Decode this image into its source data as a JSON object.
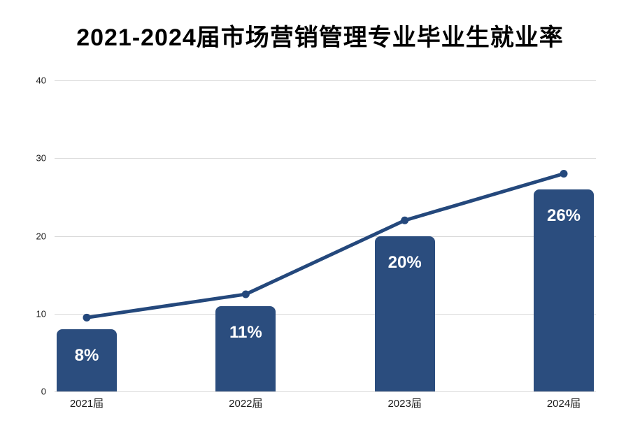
{
  "chart_data": {
    "type": "combo",
    "title": "2021-2024届市场营销管理专业毕业生就业率",
    "categories": [
      "2021届",
      "2022届",
      "2023届",
      "2024届"
    ],
    "series": [
      {
        "name": "bars",
        "type": "bar",
        "values": [
          8,
          11,
          20,
          26
        ],
        "labels": [
          "8%",
          "11%",
          "20%",
          "26%"
        ]
      },
      {
        "name": "line",
        "type": "line",
        "values": [
          9.5,
          12.5,
          22,
          28
        ]
      }
    ],
    "xlabel": "",
    "ylabel": "",
    "ylim": [
      0,
      40
    ],
    "yticks": [
      0,
      10,
      20,
      30,
      40
    ],
    "grid": true,
    "legend": false,
    "colors": {
      "bar": "#2b4d7e",
      "line": "#24487c",
      "marker": "#24487c",
      "gridline": "#d9d9d9",
      "tick_text": "#1a1a1a",
      "bar_label_text": "#ffffff",
      "title_text": "#000000",
      "background": "#ffffff"
    }
  }
}
